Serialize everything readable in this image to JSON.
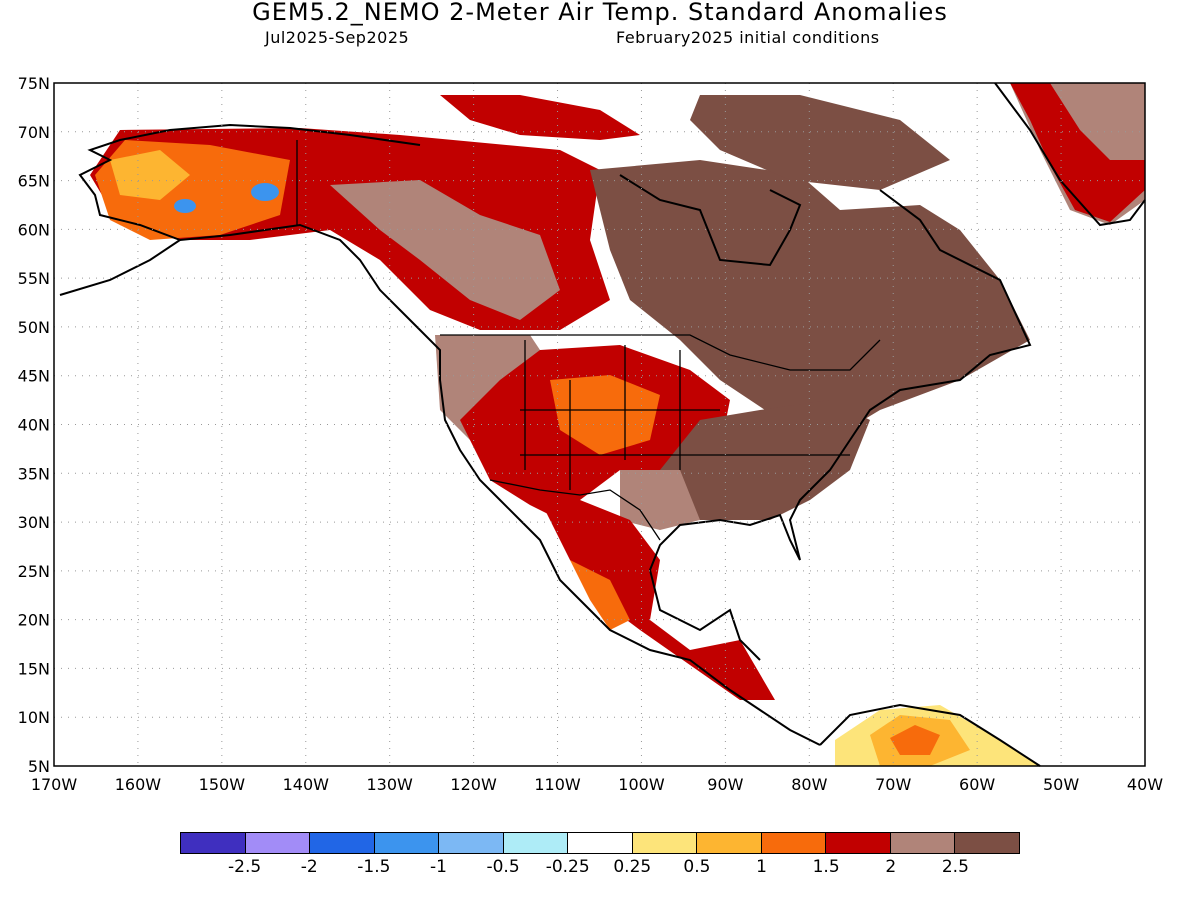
{
  "title": "GEM5.2_NEMO 2-Meter Air Temp. Standard Anomalies",
  "subtitle_left": "Jul2025-Sep2025",
  "subtitle_right": "February2025 initial conditions",
  "map": {
    "lat_labels": [
      "75N",
      "70N",
      "65N",
      "60N",
      "55N",
      "50N",
      "45N",
      "40N",
      "35N",
      "30N",
      "25N",
      "20N",
      "15N",
      "10N",
      "5N"
    ],
    "lon_labels": [
      "170W",
      "160W",
      "150W",
      "140W",
      "130W",
      "120W",
      "110W",
      "100W",
      "90W",
      "80W",
      "70W",
      "60W",
      "50W",
      "40W"
    ]
  },
  "legend": {
    "colors": [
      "#3f2fbf",
      "#a28cf7",
      "#2166e6",
      "#3c94ee",
      "#7cb8f4",
      "#aeecf7",
      "#ffffff",
      "#fde47a",
      "#fdb531",
      "#f76b0c",
      "#c10000",
      "#b08479",
      "#7c4f44"
    ],
    "labels": [
      "-2.5",
      "-2",
      "-1.5",
      "-1",
      "-0.5",
      "-0.25",
      "0.25",
      "0.5",
      "1",
      "1.5",
      "2",
      "2.5"
    ]
  }
}
